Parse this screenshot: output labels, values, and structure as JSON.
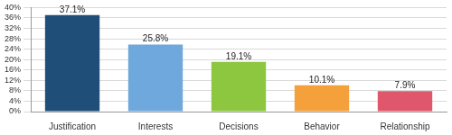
{
  "chart_data": {
    "type": "bar",
    "categories": [
      "Justification",
      "Interests",
      "Decisions",
      "Behavior",
      "Relationship"
    ],
    "values": [
      37.1,
      25.8,
      19.1,
      10.1,
      7.9
    ],
    "value_labels": [
      "37.1%",
      "25.8%",
      "19.1%",
      "10.1%",
      "7.9%"
    ],
    "colors": [
      "#1f4e79",
      "#6fa8dc",
      "#8dc63f",
      "#f4a13c",
      "#e0566b"
    ],
    "ylim": [
      0,
      40
    ],
    "yticks": [
      {
        "value": 0,
        "label": "0%"
      },
      {
        "value": 4,
        "label": "4%"
      },
      {
        "value": 8,
        "label": "8%"
      },
      {
        "value": 12,
        "label": "12%"
      },
      {
        "value": 16,
        "label": "16%"
      },
      {
        "value": 20,
        "label": "20%"
      },
      {
        "value": 24,
        "label": "24%"
      },
      {
        "value": 28,
        "label": "28%"
      },
      {
        "value": 32,
        "label": "32%"
      },
      {
        "value": 36,
        "label": "36%"
      },
      {
        "value": 40,
        "label": "40%"
      }
    ],
    "grid": true,
    "data_labels": true
  }
}
